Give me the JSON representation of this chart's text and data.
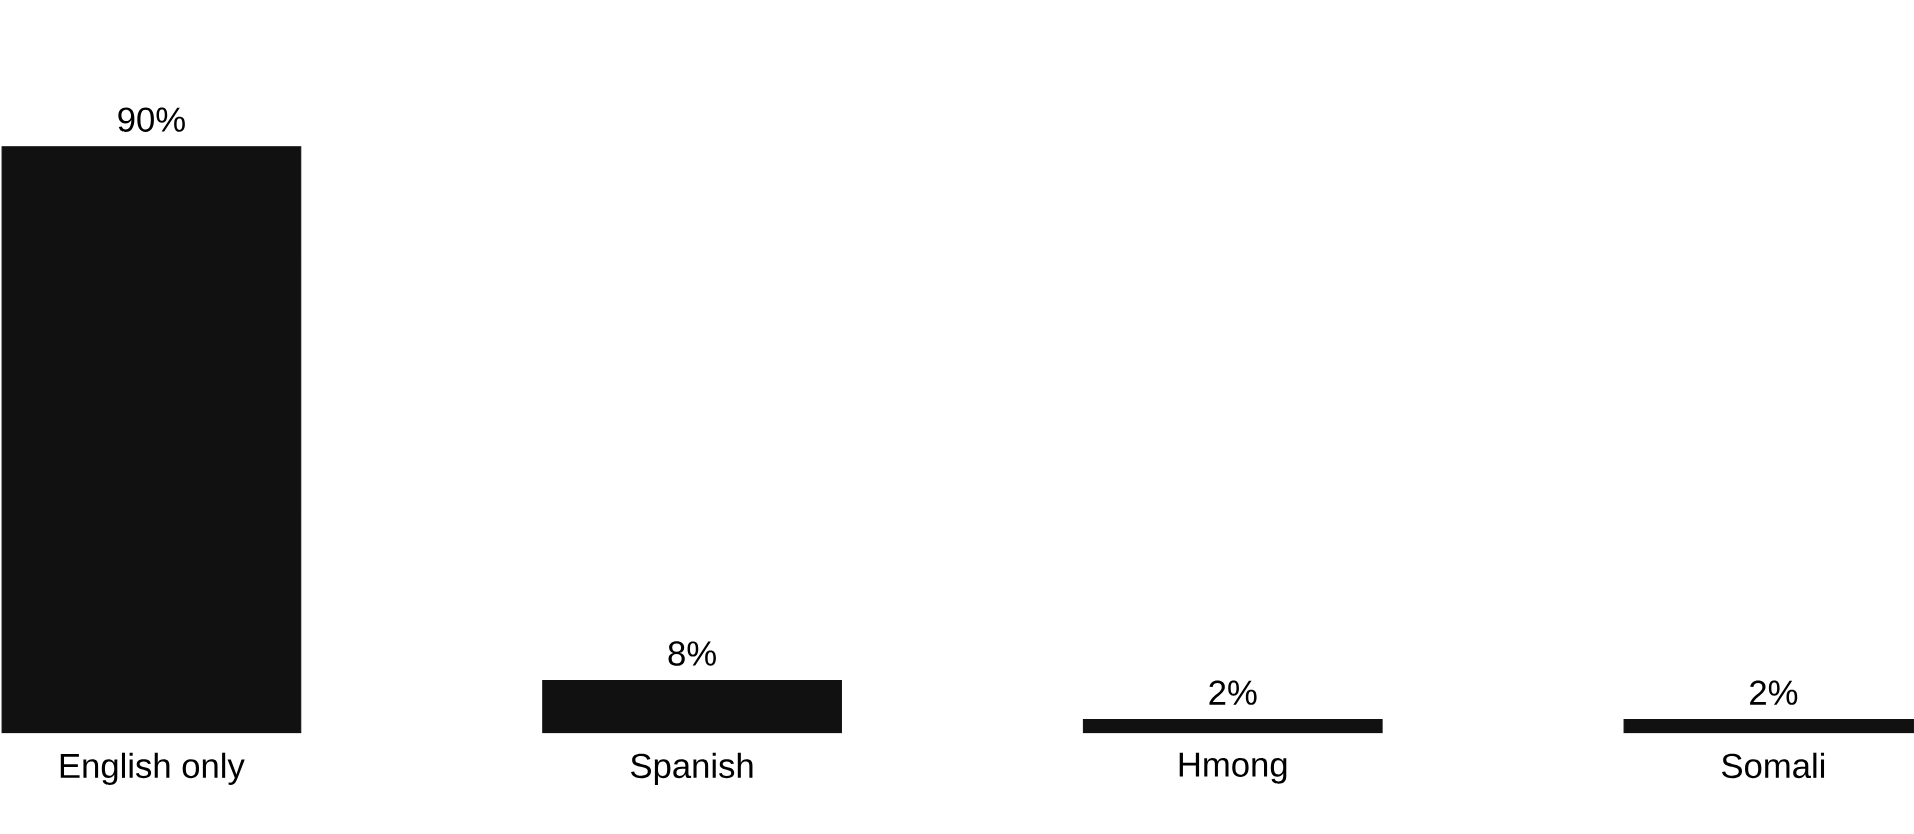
{
  "chart_data": {
    "type": "bar",
    "categories": [
      "English only",
      "Spanish",
      "Hmong",
      "Somali"
    ],
    "values": [
      90,
      8,
      2,
      2
    ],
    "color": "#111111",
    "value_labels": [
      "90%",
      "8%",
      "2%",
      "2%"
    ]
  }
}
